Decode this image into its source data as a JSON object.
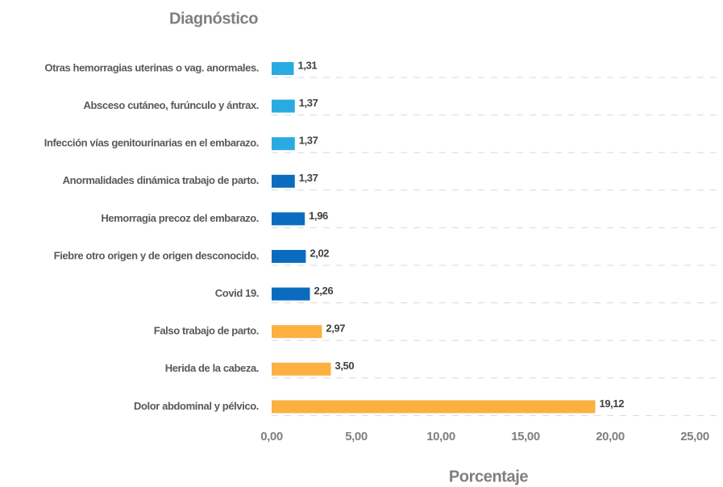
{
  "chart_data": {
    "type": "barh",
    "title": "Diagnóstico",
    "x_label": "Porcentaje",
    "categories": [
      "Otras hemorragias uterinas o vag. anormales.",
      "Absceso cutáneo, furúnculo y ántrax.",
      "Infección vías genitourinarias en el embarazo.",
      "Anormalidades dinámica trabajo de parto.",
      "Hemorragia precoz del embarazo.",
      "Fiebre otro origen y de origen desconocido.",
      "Covid 19.",
      "Falso trabajo de parto.",
      "Herida de la cabeza.",
      "Dolor abdominal y pélvico."
    ],
    "values": [
      1.31,
      1.37,
      1.37,
      1.37,
      1.96,
      2.02,
      2.26,
      2.97,
      3.5,
      19.12
    ],
    "value_labels": [
      "1,31",
      "1,37",
      "1,37",
      "1,37",
      "1,96",
      "2,02",
      "2,26",
      "2,97",
      "3,50",
      "19,12"
    ],
    "colors": [
      "#29abe2",
      "#29abe2",
      "#29abe2",
      "#0b6cbf",
      "#0b6cbf",
      "#0b6cbf",
      "#0b6cbf",
      "#fbb040",
      "#fbb040",
      "#fbb040"
    ],
    "xlim": [
      0,
      25
    ],
    "xticks": [
      {
        "value": 0,
        "label": "0,00"
      },
      {
        "value": 5,
        "label": "5,00"
      },
      {
        "value": 10,
        "label": "10,00"
      },
      {
        "value": 15,
        "label": "15,00"
      },
      {
        "value": 20,
        "label": "20,00"
      },
      {
        "value": 25,
        "label": "25,00"
      }
    ]
  }
}
